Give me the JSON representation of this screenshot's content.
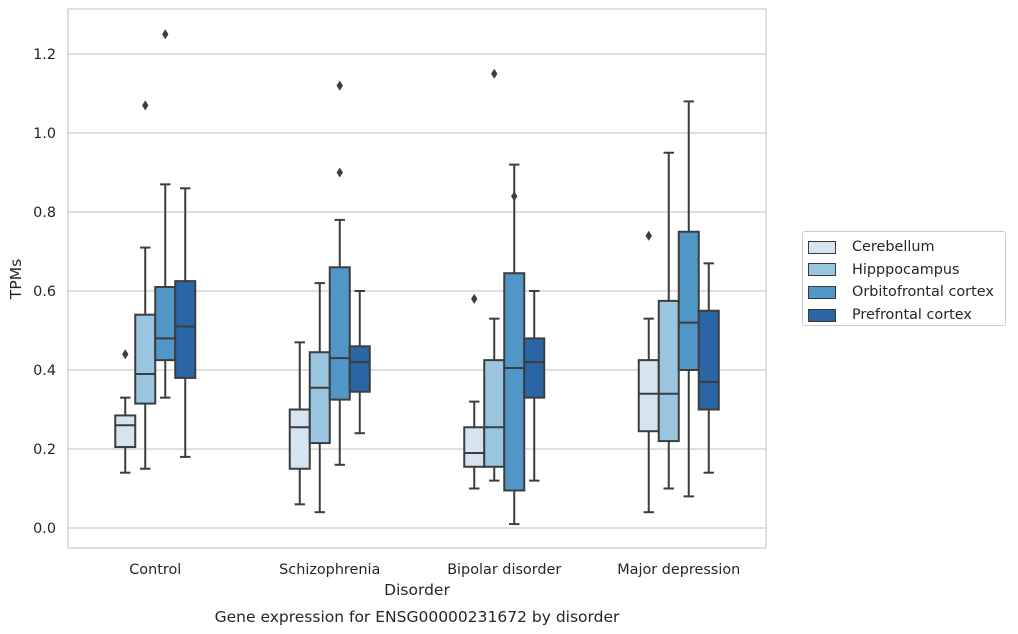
{
  "chart_data": {
    "type": "box",
    "title": "",
    "xlabel": "Disorder",
    "ylabel": "TPMs",
    "caption": "Gene expression for ENSG00000231672 by disorder",
    "ylim": [
      -0.05,
      1.32
    ],
    "yticks": [
      0.0,
      0.2,
      0.4,
      0.6,
      0.8,
      1.0,
      1.2
    ],
    "ytick_labels": [
      "0.0",
      "0.2",
      "0.4",
      "0.6",
      "0.8",
      "1.0",
      "1.2"
    ],
    "grid": "horizontal",
    "legend_position": "right",
    "categories": [
      "Control",
      "Schizophrenia",
      "Bipolar disorder",
      "Major depression"
    ],
    "series": [
      {
        "name": "Cerebellum",
        "color": "#d6e4f2",
        "boxes": [
          {
            "whislo": 0.14,
            "q1": 0.205,
            "med": 0.26,
            "q3": 0.285,
            "whishi": 0.33,
            "fliers": [
              0.44
            ]
          },
          {
            "whislo": 0.06,
            "q1": 0.15,
            "med": 0.255,
            "q3": 0.3,
            "whishi": 0.47,
            "fliers": []
          },
          {
            "whislo": 0.1,
            "q1": 0.155,
            "med": 0.19,
            "q3": 0.255,
            "whishi": 0.32,
            "fliers": [
              0.58
            ]
          },
          {
            "whislo": 0.04,
            "q1": 0.245,
            "med": 0.34,
            "q3": 0.425,
            "whishi": 0.53,
            "fliers": [
              0.74
            ]
          }
        ]
      },
      {
        "name": "Hipppocampus",
        "color": "#9ac5e0",
        "boxes": [
          {
            "whislo": 0.15,
            "q1": 0.315,
            "med": 0.39,
            "q3": 0.54,
            "whishi": 0.71,
            "fliers": [
              1.07
            ]
          },
          {
            "whislo": 0.04,
            "q1": 0.215,
            "med": 0.355,
            "q3": 0.445,
            "whishi": 0.62,
            "fliers": []
          },
          {
            "whislo": 0.12,
            "q1": 0.155,
            "med": 0.255,
            "q3": 0.425,
            "whishi": 0.53,
            "fliers": [
              1.15
            ]
          },
          {
            "whislo": 0.1,
            "q1": 0.22,
            "med": 0.34,
            "q3": 0.575,
            "whishi": 0.95,
            "fliers": []
          }
        ]
      },
      {
        "name": "Orbitofrontal cortex",
        "color": "#5097c8",
        "boxes": [
          {
            "whislo": 0.33,
            "q1": 0.425,
            "med": 0.48,
            "q3": 0.61,
            "whishi": 0.87,
            "fliers": [
              1.25
            ]
          },
          {
            "whislo": 0.16,
            "q1": 0.325,
            "med": 0.43,
            "q3": 0.66,
            "whishi": 0.78,
            "fliers": [
              0.9,
              1.12
            ]
          },
          {
            "whislo": 0.01,
            "q1": 0.095,
            "med": 0.405,
            "q3": 0.645,
            "whishi": 0.92,
            "fliers": [
              0.84
            ]
          },
          {
            "whislo": 0.08,
            "q1": 0.4,
            "med": 0.52,
            "q3": 0.75,
            "whishi": 1.08,
            "fliers": []
          }
        ]
      },
      {
        "name": "Prefrontal cortex",
        "color": "#2a66a6",
        "boxes": [
          {
            "whislo": 0.18,
            "q1": 0.38,
            "med": 0.51,
            "q3": 0.625,
            "whishi": 0.86,
            "fliers": []
          },
          {
            "whislo": 0.24,
            "q1": 0.345,
            "med": 0.42,
            "q3": 0.46,
            "whishi": 0.6,
            "fliers": []
          },
          {
            "whislo": 0.12,
            "q1": 0.33,
            "med": 0.42,
            "q3": 0.48,
            "whishi": 0.6,
            "fliers": []
          },
          {
            "whislo": 0.14,
            "q1": 0.3,
            "med": 0.37,
            "q3": 0.55,
            "whishi": 0.67,
            "fliers": []
          }
        ]
      }
    ]
  }
}
